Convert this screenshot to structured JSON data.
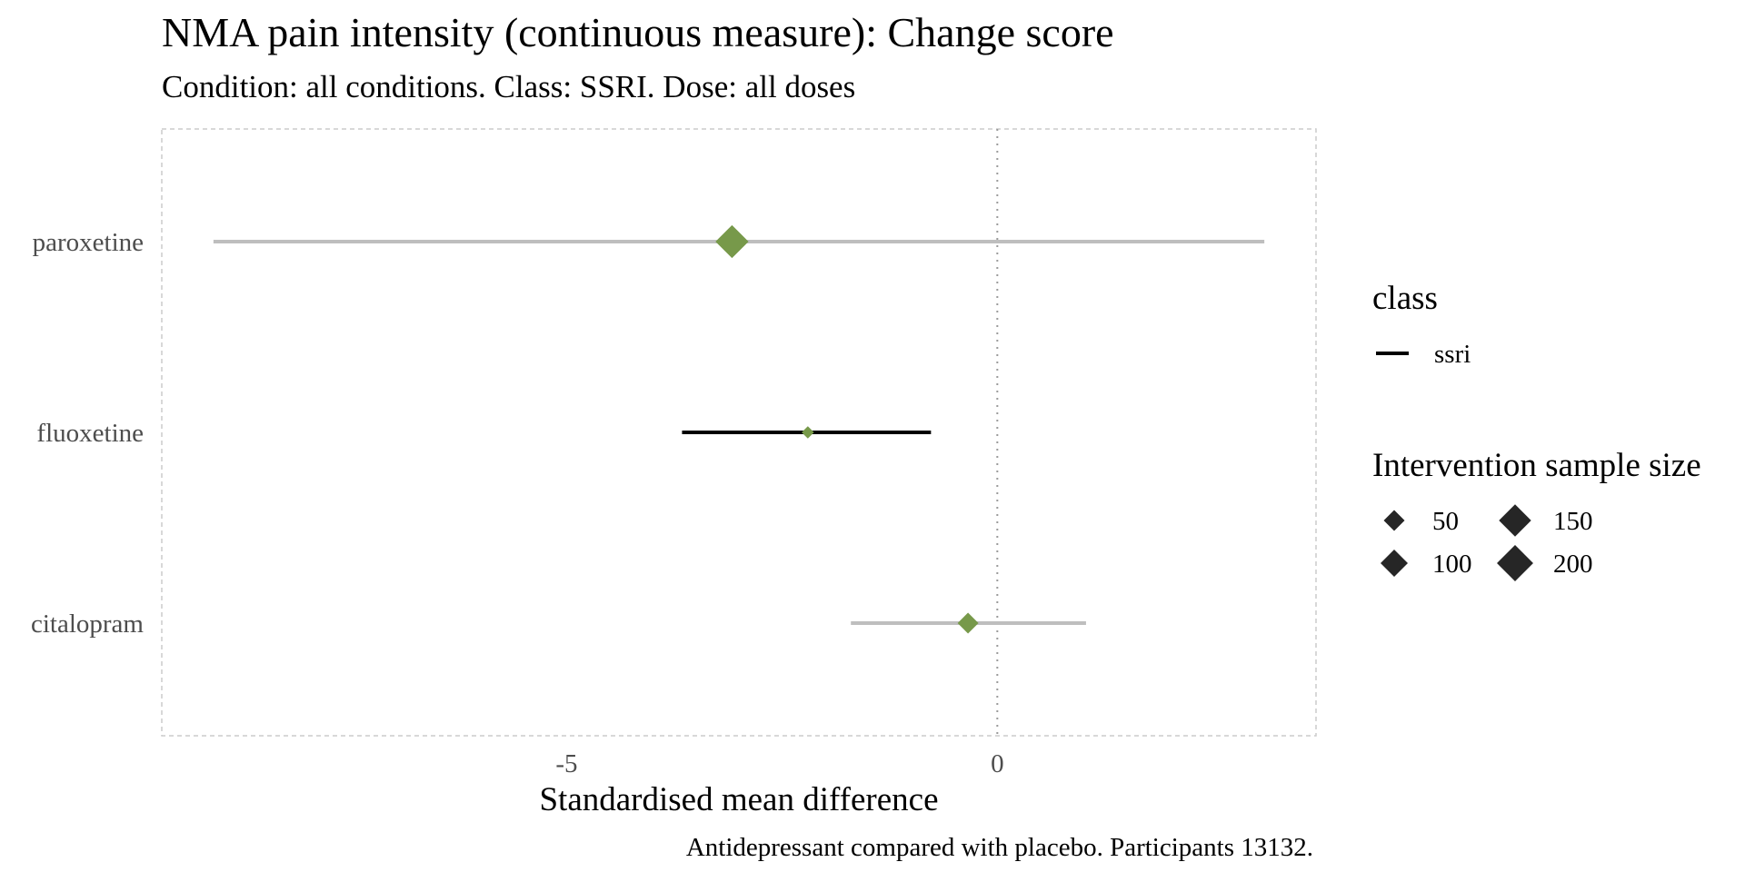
{
  "chart_data": {
    "type": "forest",
    "title": "NMA pain intensity (continuous measure): Change score",
    "subtitle": "Condition: all conditions. Class: SSRI. Dose: all doses",
    "xlabel": "Standardised mean difference",
    "caption": "Antidepressant compared with placebo. Participants 13132.",
    "xlim": [
      -9.7,
      3.7
    ],
    "x_ticks": [
      -5,
      0
    ],
    "x_tick_labels": [
      "-5",
      "0"
    ],
    "reference_line": 0,
    "grid": false,
    "categories": [
      "paroxetine",
      "fluoxetine",
      "citalopram"
    ],
    "series": [
      {
        "drug": "paroxetine",
        "estimate": -3.08,
        "lower": -9.1,
        "upper": 3.1,
        "sample_size": 160,
        "highlight": false
      },
      {
        "drug": "fluoxetine",
        "estimate": -2.2,
        "lower": -3.66,
        "upper": -0.77,
        "sample_size": 10,
        "highlight": true
      },
      {
        "drug": "citalopram",
        "estimate": -0.34,
        "lower": -1.7,
        "upper": 1.03,
        "sample_size": 50,
        "highlight": false
      }
    ],
    "legend": {
      "placement": "right",
      "class_title": "class",
      "class_items": [
        "ssri"
      ],
      "size_title": "Intervention sample size",
      "size_items": [
        {
          "label": "50",
          "value": 50
        },
        {
          "label": "150",
          "value": 150
        },
        {
          "label": "100",
          "value": 100
        },
        {
          "label": "200",
          "value": 200
        }
      ]
    },
    "colors": {
      "point": "#77994A",
      "ci_default": "#BEBEBE",
      "ci_highlight": "#000000",
      "reference_line": "#9A9A9A",
      "panel_border": "#CCCCCC",
      "legend_marker": "#262626"
    }
  }
}
